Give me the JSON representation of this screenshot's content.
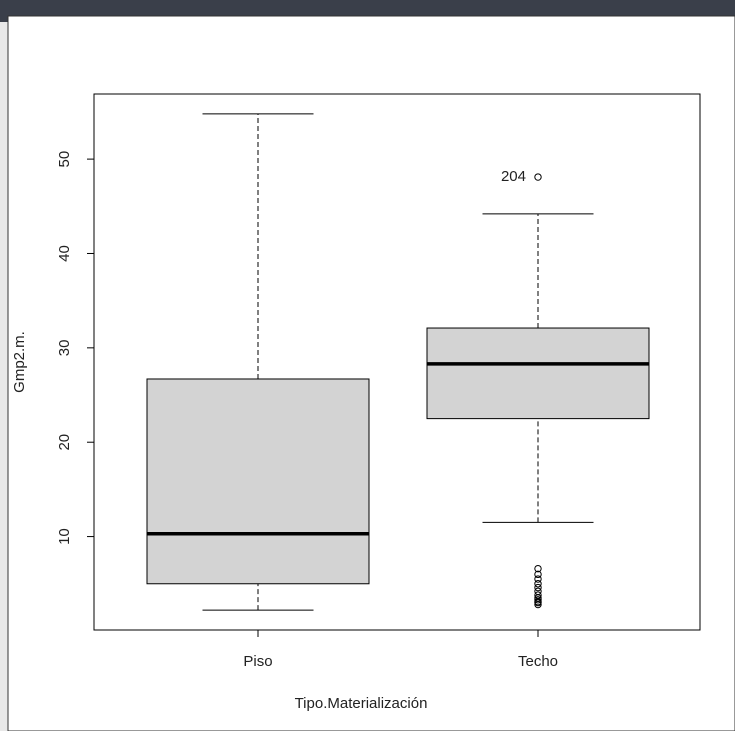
{
  "chart_data": {
    "type": "boxplot",
    "x_label": "Tipo.Materialización",
    "y_label": "Gmp2.m.",
    "categories": [
      "Piso",
      "Techo"
    ],
    "ylim": [
      0.1,
      56.9
    ],
    "yticks": [
      10,
      20,
      30,
      40,
      50
    ],
    "box_color": "#d3d3d3",
    "boxes": [
      {
        "whisker_low": 2.2,
        "q1": 5.0,
        "median": 10.3,
        "q3": 26.7,
        "whisker_high": 54.8,
        "outliers": [],
        "outlier_labels": []
      },
      {
        "whisker_low": 11.5,
        "q1": 22.5,
        "median": 28.3,
        "q3": 32.1,
        "whisker_high": 44.2,
        "outliers": [
          2.8,
          3.0,
          3.1,
          3.3,
          3.5,
          3.8,
          4.2,
          4.6,
          5.0,
          5.5,
          6.0,
          6.6,
          48.1
        ],
        "outlier_labels": [
          null,
          null,
          null,
          null,
          null,
          null,
          null,
          null,
          null,
          null,
          null,
          null,
          "204"
        ]
      }
    ]
  }
}
